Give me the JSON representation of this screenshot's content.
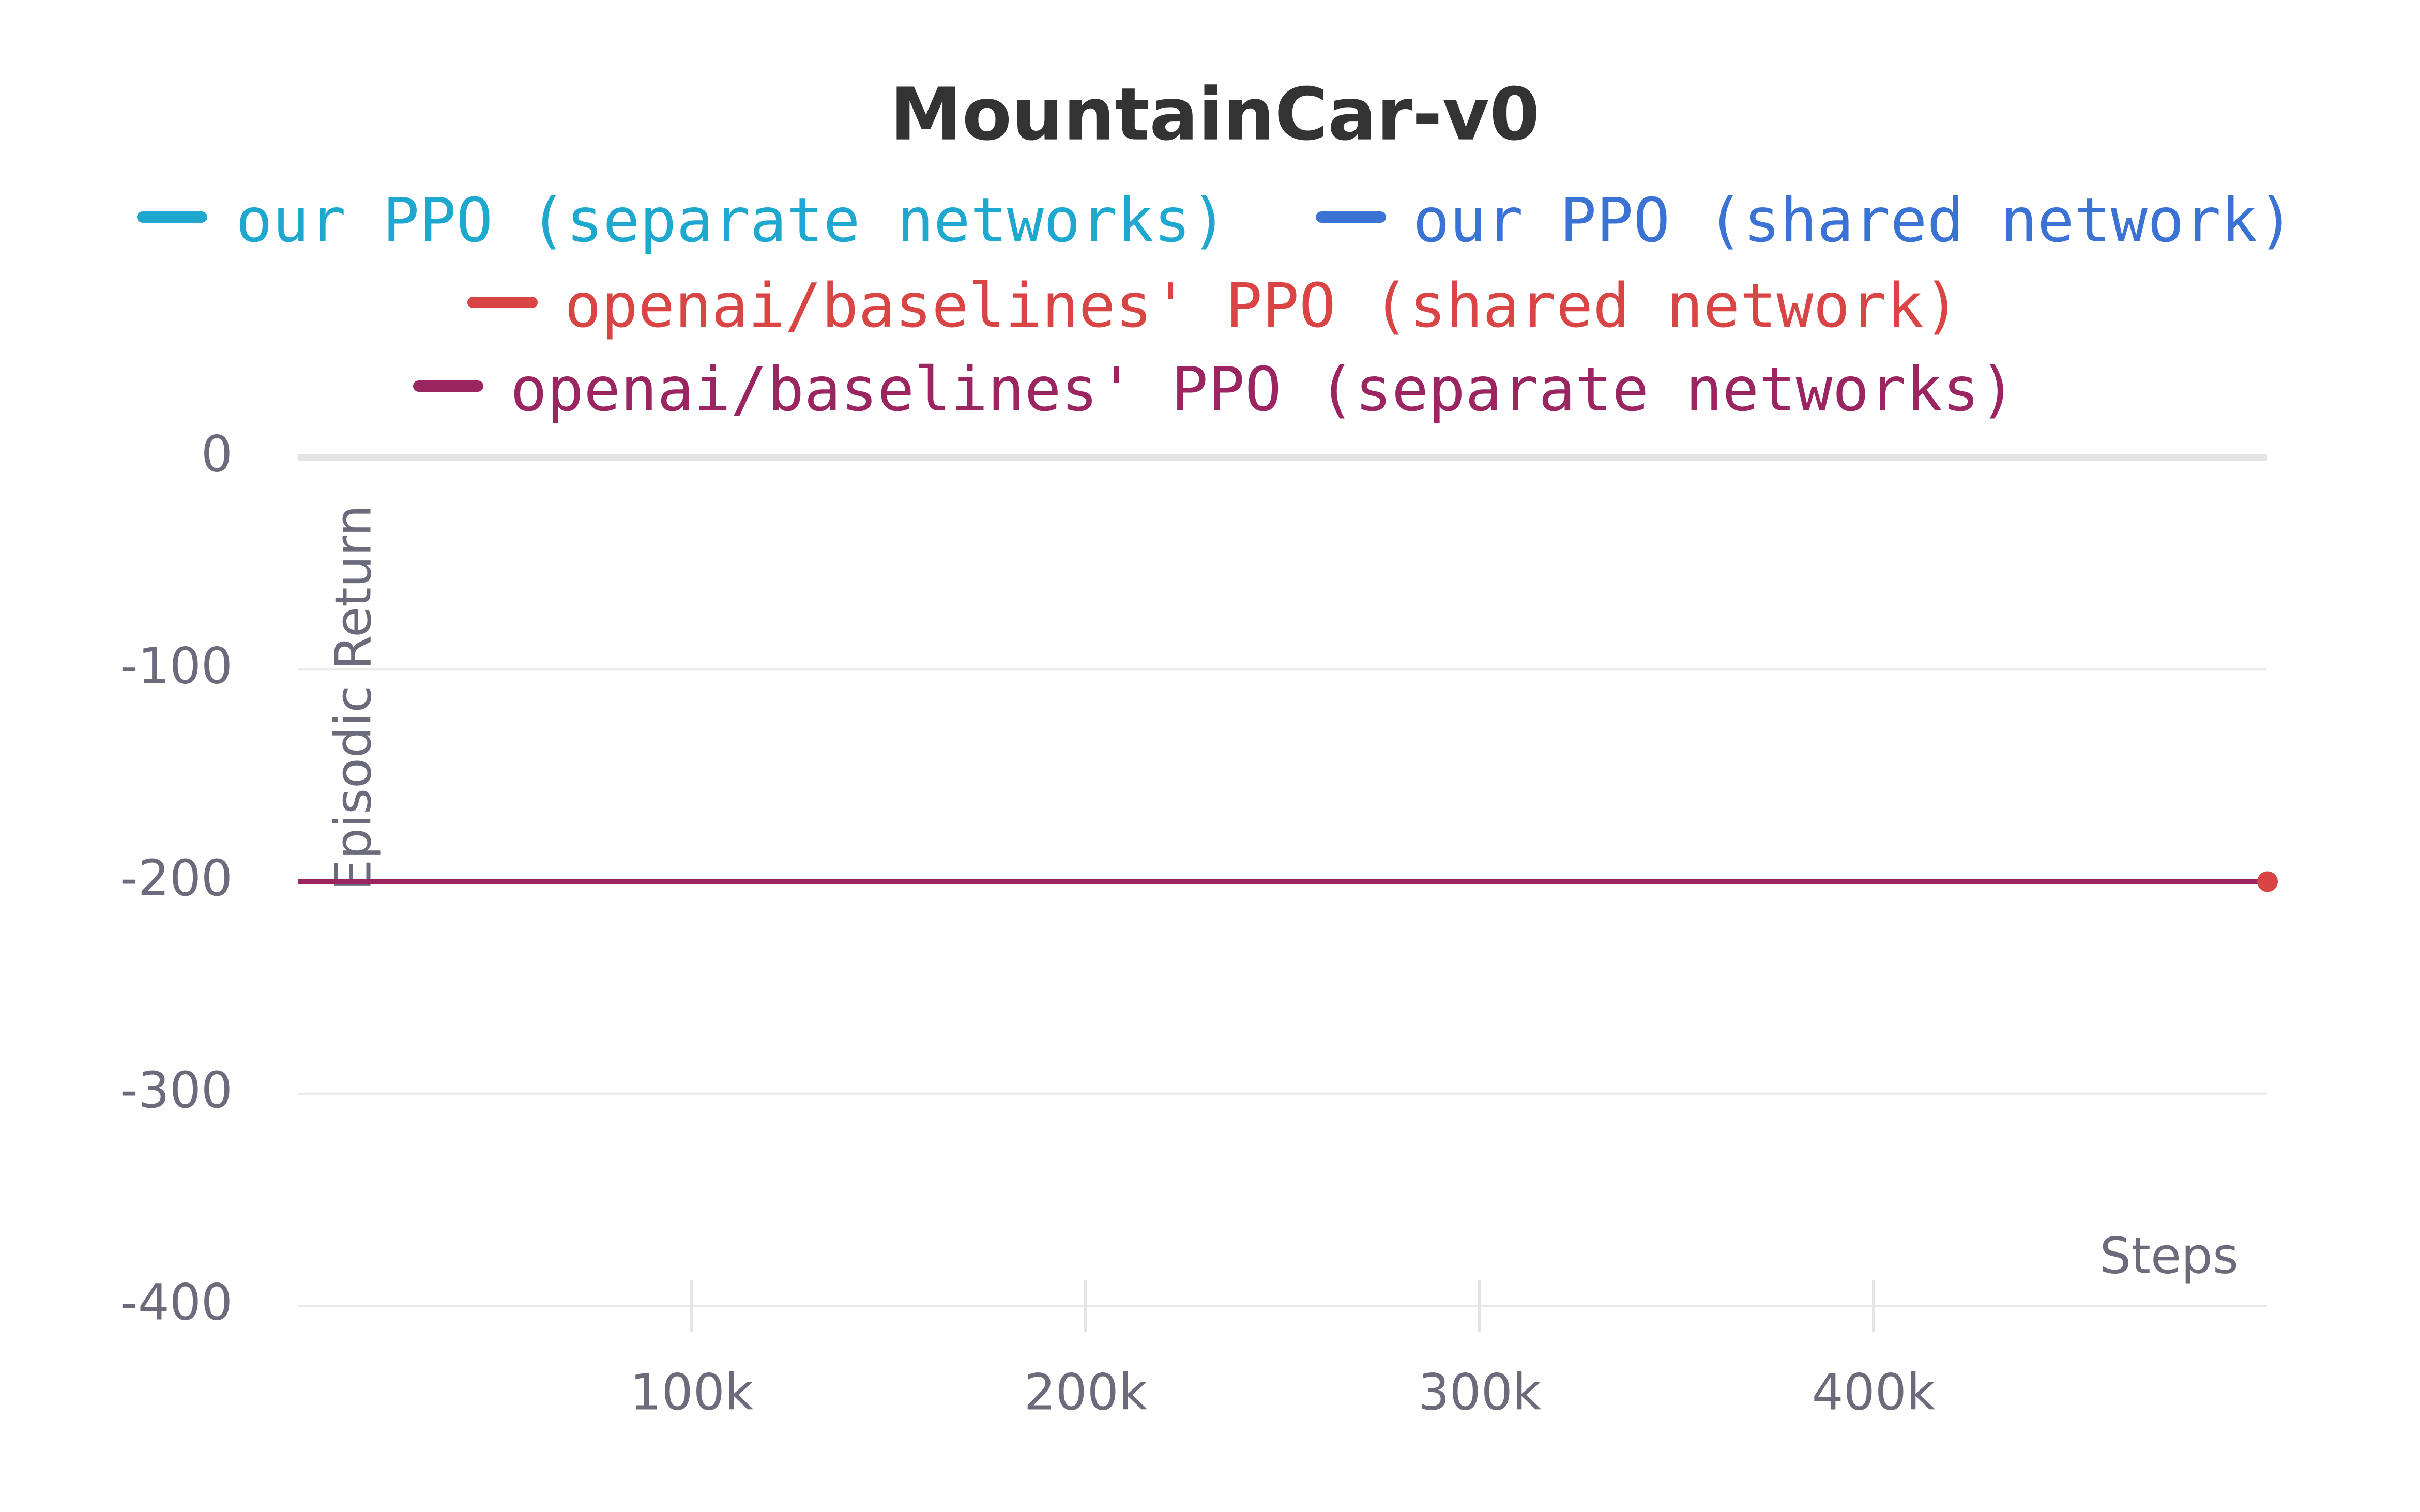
{
  "chart_data": {
    "type": "line",
    "title": "MountainCar-v0",
    "x_label": "Steps",
    "y_label": "Episodic Return",
    "x": [
      0,
      500000
    ],
    "series": [
      {
        "name": "our PPO (separate networks)",
        "color": "#1fa8cf",
        "values": [
          -200,
          -200
        ]
      },
      {
        "name": "our PPO (shared network)",
        "color": "#3a73d4",
        "values": [
          -200,
          -200
        ]
      },
      {
        "name": "openai/baselines' PPO (shared network)",
        "color": "#d94444",
        "values": [
          -200,
          -200
        ]
      },
      {
        "name": "openai/baselines' PPO (separate networks)",
        "color": "#9a2560",
        "values": [
          -200,
          -200
        ]
      }
    ],
    "xlim": [
      0,
      500000
    ],
    "xticks": [
      {
        "value": 100000,
        "label": "100k"
      },
      {
        "value": 200000,
        "label": "200k"
      },
      {
        "value": 300000,
        "label": "300k"
      },
      {
        "value": 400000,
        "label": "400k"
      }
    ],
    "ylim": [
      -400,
      0
    ],
    "yticks": [
      0,
      -100,
      -200,
      -300,
      -400
    ],
    "grid": true
  }
}
